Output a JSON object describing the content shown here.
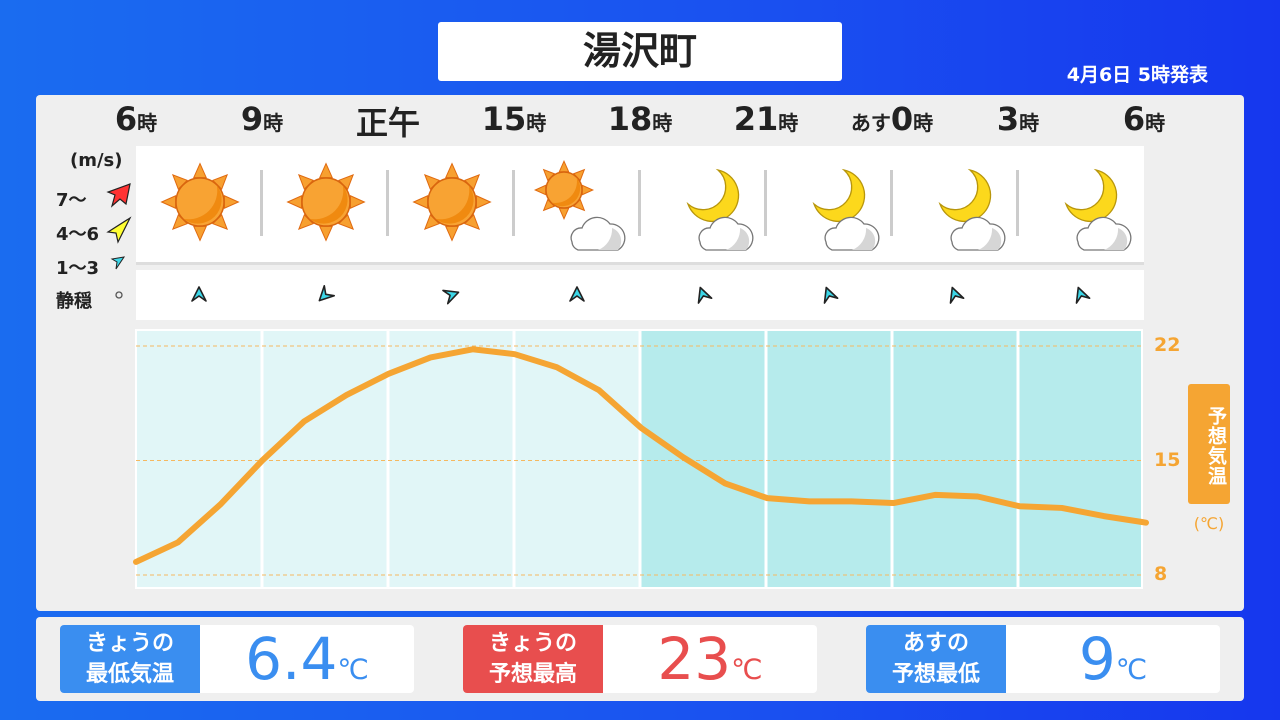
{
  "header": {
    "location": "湯沢町",
    "issued": "4月6日 5時発表"
  },
  "hours": [
    {
      "num": "6",
      "suf": "時"
    },
    {
      "num": "9",
      "suf": "時"
    },
    {
      "num": "正午",
      "suf": ""
    },
    {
      "num": "15",
      "suf": "時"
    },
    {
      "num": "18",
      "suf": "時"
    },
    {
      "num": "21",
      "suf": "時"
    },
    {
      "pre": "あす",
      "num": "0",
      "suf": "時"
    },
    {
      "num": "3",
      "suf": "時"
    },
    {
      "num": "6",
      "suf": "時"
    }
  ],
  "weather": [
    "sunny",
    "sunny",
    "sunny",
    "sunny-then-cloudy",
    "moon-cloud",
    "moon-cloud",
    "moon-cloud",
    "moon-cloud"
  ],
  "wind_legend": {
    "unit": "(m/s)",
    "strong": "7〜",
    "medium": "4〜6",
    "light": "1〜3",
    "calm": "静穏"
  },
  "wind": [
    {
      "speed": "1〜3",
      "dir_deg": 0
    },
    {
      "speed": "1〜3",
      "dir_deg": 225
    },
    {
      "speed": "1〜3",
      "dir_deg": 70
    },
    {
      "speed": "1〜3",
      "dir_deg": 0
    },
    {
      "speed": "1〜3",
      "dir_deg": -20
    },
    {
      "speed": "1〜3",
      "dir_deg": -20
    },
    {
      "speed": "1〜3",
      "dir_deg": -20
    },
    {
      "speed": "1〜3",
      "dir_deg": -20
    }
  ],
  "colors": {
    "line": "#f5a533",
    "day_bg": "#e1f6f7",
    "night_bg": "#b6ebec",
    "low": "#3a8ef0",
    "high": "#e84e4e"
  },
  "chart_data": {
    "type": "line",
    "ylabel": "予想気温",
    "yunit": "(℃)",
    "yticks": [
      22,
      15,
      8
    ],
    "ylim": [
      7.2,
      22.8
    ],
    "x": [
      "6時",
      "7",
      "8",
      "9時",
      "10",
      "11",
      "正午",
      "13",
      "14",
      "15時",
      "16",
      "17",
      "18時",
      "19",
      "20",
      "21時",
      "22",
      "23",
      "あす0時",
      "1",
      "2",
      "3時",
      "4",
      "5",
      "6時"
    ],
    "values": [
      8.8,
      10.0,
      12.3,
      15.0,
      17.4,
      19.0,
      20.3,
      21.3,
      21.8,
      21.5,
      20.7,
      19.3,
      17.0,
      15.2,
      13.6,
      12.7,
      12.5,
      12.5,
      12.4,
      12.9,
      12.8,
      12.2,
      12.1,
      11.6,
      11.2
    ],
    "night_from_index": 12,
    "grid": "dashed-horizontal"
  },
  "summary": [
    {
      "label1": "きょうの",
      "label2": "最低気温",
      "value": "6.4",
      "unit": "℃"
    },
    {
      "label1": "きょうの",
      "label2": "予想最高",
      "value": "23",
      "unit": "℃"
    },
    {
      "label1": "あすの",
      "label2": "予想最低",
      "value": "9",
      "unit": "℃"
    }
  ]
}
